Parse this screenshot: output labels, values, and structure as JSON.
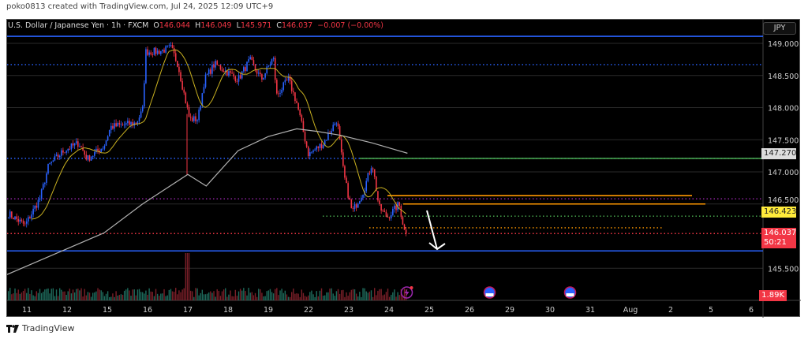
{
  "credit": "poko0813 created with TradingView.com, Jul 24, 2025 12:09 UTC+9",
  "legend": {
    "symbol": "U.S. Dollar / Japanese Yen · 1h · FXCM",
    "o_label": "O",
    "o": "146.044",
    "h_label": "H",
    "h": "146.049",
    "l_label": "L",
    "l": "145.971",
    "c_label": "C",
    "c": "146.037",
    "change": "−0.007 (−0.00%)"
  },
  "currency": "JPY",
  "price_tags": {
    "level": "147.270",
    "yellow": "146.423",
    "last": "146.037",
    "countdown": "50:21",
    "volume": "1.89K"
  },
  "footer": {
    "brand": "TradingView"
  },
  "colors": {
    "up": "#2962ff",
    "down": "#f23645",
    "ma_fast": "#c8b020",
    "ma_slow": "#b0b0b0",
    "bg": "#000000"
  },
  "chart_data": {
    "type": "candlestick",
    "interval": "1h",
    "y_ticks": [
      "149.000",
      "148.500",
      "148.000",
      "147.500",
      "147.000",
      "146.500",
      "145.500"
    ],
    "ylim": [
      145.3,
      149.2
    ],
    "x_ticks": [
      "11",
      "12",
      "15",
      "16",
      "17",
      "18",
      "19",
      "22",
      "23",
      "24",
      "25",
      "26",
      "29",
      "30",
      "31",
      "Aug",
      "2",
      "5",
      "6"
    ],
    "close_path": [
      [
        "Jul 10 13:00",
        146.35
      ],
      [
        "Jul 10 23:00",
        146.17
      ],
      [
        "Jul 11 08:00",
        146.6
      ],
      [
        "Jul 11 13:00",
        147.1
      ],
      [
        "Jul 11 22:00",
        147.33
      ],
      [
        "Jul 12 07:00",
        147.45
      ],
      [
        "Jul 12 12:00",
        147.2
      ],
      [
        "Jul 12 22:00",
        147.4
      ],
      [
        "Jul 15 02:00",
        147.7
      ],
      [
        "Jul 15 17:00",
        147.76
      ],
      [
        "Jul 15 21:00",
        147.95
      ],
      [
        "Jul 15 23:00",
        148.87
      ],
      [
        "Jul 16 06:00",
        148.87
      ],
      [
        "Jul 16 14:00",
        148.93
      ],
      [
        "Jul 16 18:00",
        148.68
      ],
      [
        "Jul 17 01:00",
        147.82
      ],
      [
        "Jul 17 06:00",
        147.82
      ],
      [
        "Jul 17 10:00",
        148.44
      ],
      [
        "Jul 17 16:00",
        148.68
      ],
      [
        "Jul 17 23:00",
        148.56
      ],
      [
        "Jul 18 06:00",
        148.44
      ],
      [
        "Jul 18 13:00",
        148.74
      ],
      [
        "Jul 18 20:00",
        148.44
      ],
      [
        "Jul 19 03:00",
        148.78
      ],
      [
        "Jul 19 05:00",
        148.19
      ],
      [
        "Jul 19 12:00",
        148.44
      ],
      [
        "Jul 19 17:00",
        148.07
      ],
      [
        "Jul 22 00:00",
        147.27
      ],
      [
        "Jul 22 09:00",
        147.45
      ],
      [
        "Jul 22 17:00",
        147.82
      ],
      [
        "Jul 22 21:00",
        146.96
      ],
      [
        "Jul 23 02:00",
        146.37
      ],
      [
        "Jul 23 09:00",
        146.72
      ],
      [
        "Jul 23 14:00",
        147.15
      ],
      [
        "Jul 23 18:00",
        146.45
      ],
      [
        "Jul 23 23:00",
        146.29
      ],
      [
        "Jul 24 06:00",
        146.5
      ],
      [
        "Jul 24 10:00",
        145.98
      ],
      [
        "Jul 24 11:00",
        146.04
      ]
    ],
    "ma_slow": [
      [
        "Jul 10 12:00",
        145.4
      ],
      [
        "Jul 11 13:00",
        145.68
      ],
      [
        "Jul 12 22:00",
        146.05
      ],
      [
        "Jul 15 21:00",
        146.5
      ],
      [
        "Jul 17 00:00",
        146.96
      ],
      [
        "Jul 17 11:00",
        146.78
      ],
      [
        "Jul 18 06:00",
        147.33
      ],
      [
        "Jul 19 00:00",
        147.55
      ],
      [
        "Jul 19 17:00",
        147.67
      ],
      [
        "Jul 22 05:00",
        147.63
      ],
      [
        "Jul 22 19:00",
        147.57
      ],
      [
        "Jul 23 14:00",
        147.45
      ],
      [
        "Jul 24 11:00",
        147.29
      ]
    ],
    "levels": [
      {
        "price": 149.11,
        "style": "solid",
        "color": "#2962ff"
      },
      {
        "price": 148.67,
        "style": "dotted",
        "color": "#2962ff"
      },
      {
        "price": 147.21,
        "style": "dotted",
        "color": "#2962ff"
      },
      {
        "price": 147.21,
        "style": "solid",
        "color": "#4caf50"
      },
      {
        "price": 146.63,
        "style": "solid",
        "color": "#ff9800"
      },
      {
        "price": 146.58,
        "style": "dotted",
        "color": "#9c27b0"
      },
      {
        "price": 146.5,
        "style": "solid",
        "color": "#ff9800"
      },
      {
        "price": 146.31,
        "style": "dotted",
        "color": "#4caf50"
      },
      {
        "price": 146.13,
        "style": "dotted",
        "color": "#ff9800"
      },
      {
        "price": 146.04,
        "style": "dotted",
        "color": "#f23645"
      },
      {
        "price": 145.77,
        "style": "solid",
        "color": "#2962ff"
      }
    ],
    "events": [
      {
        "date": "Jul 24",
        "icon": "lightning-icon"
      },
      {
        "date": "Jul 26",
        "icon": "us-flag-icon"
      },
      {
        "date": "Jul 30",
        "icon": "us-flag-icon"
      }
    ]
  }
}
